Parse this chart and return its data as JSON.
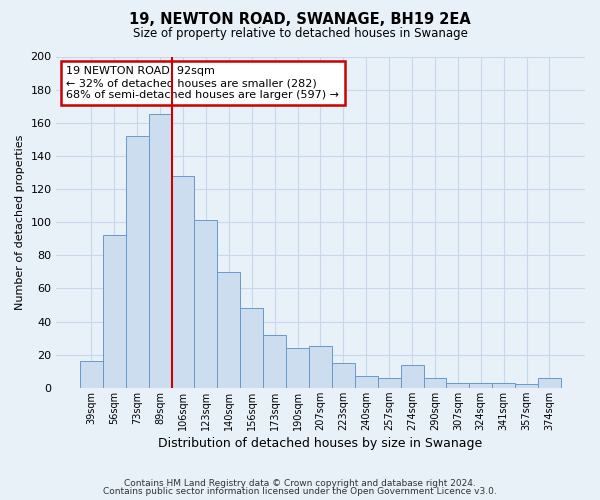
{
  "title1": "19, NEWTON ROAD, SWANAGE, BH19 2EA",
  "title2": "Size of property relative to detached houses in Swanage",
  "xlabel": "Distribution of detached houses by size in Swanage",
  "ylabel": "Number of detached properties",
  "bar_labels": [
    "39sqm",
    "56sqm",
    "73sqm",
    "89sqm",
    "106sqm",
    "123sqm",
    "140sqm",
    "156sqm",
    "173sqm",
    "190sqm",
    "207sqm",
    "223sqm",
    "240sqm",
    "257sqm",
    "274sqm",
    "290sqm",
    "307sqm",
    "324sqm",
    "341sqm",
    "357sqm",
    "374sqm"
  ],
  "bar_heights": [
    16,
    92,
    152,
    165,
    128,
    101,
    70,
    48,
    32,
    24,
    25,
    15,
    7,
    6,
    14,
    6,
    3,
    3,
    3,
    2,
    6
  ],
  "bar_color": "#ccddf0",
  "bar_edge_color": "#6699cc",
  "vline_x": 3.5,
  "vline_color": "#cc0000",
  "annotation_line1": "19 NEWTON ROAD: 92sqm",
  "annotation_line2": "← 32% of detached houses are smaller (282)",
  "annotation_line3": "68% of semi-detached houses are larger (597) →",
  "annotation_box_edge": "#cc0000",
  "annotation_box_face": "#ffffff",
  "ylim": [
    0,
    200
  ],
  "yticks": [
    0,
    20,
    40,
    60,
    80,
    100,
    120,
    140,
    160,
    180,
    200
  ],
  "grid_color": "#c5d8ec",
  "bg_color": "#e8f0f8",
  "footer1": "Contains HM Land Registry data © Crown copyright and database right 2024.",
  "footer2": "Contains public sector information licensed under the Open Government Licence v3.0."
}
